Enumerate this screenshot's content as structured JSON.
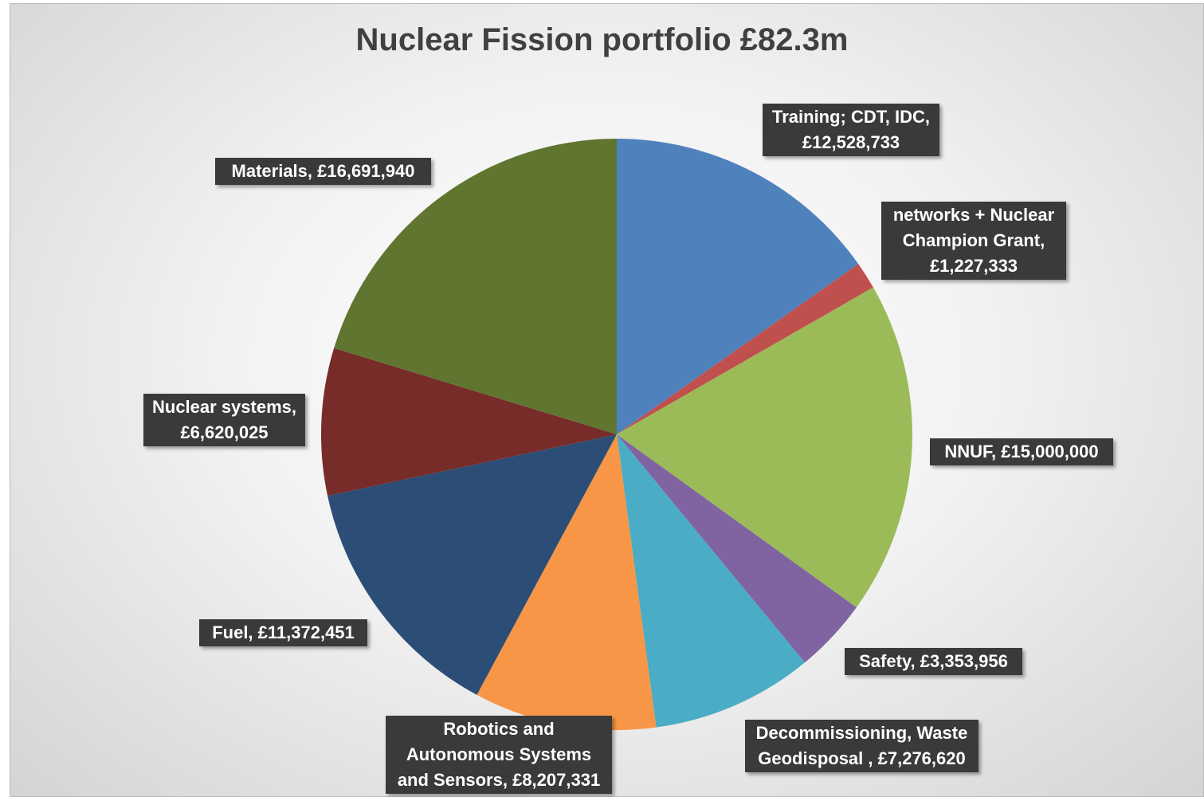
{
  "chart_data": {
    "type": "pie",
    "title": "Nuclear Fission portfolio £82.3m",
    "values": [
      12528733,
      1227333,
      15000000,
      3353956,
      7276620,
      8207331,
      11372451,
      6620025,
      16691940
    ],
    "value_labels": [
      "Training; CDT, IDC, £12,528,733",
      "networks + Nuclear Champion Grant, £1,227,333",
      "NNUF, £15,000,000",
      "Safety, £3,353,956",
      "Decommissioning, Waste Geodisposal , £7,276,620",
      "Robotics and Autonomous Systems and Sensors, £8,207,331",
      "Fuel, £11,372,451",
      "Nuclear systems, £6,620,025",
      "Materials, £16,691,940"
    ],
    "colors": [
      "#4f81bd",
      "#c0504d",
      "#9bbb59",
      "#8064a2",
      "#4bacc6",
      "#f79646",
      "#2c4d75",
      "#772c2a",
      "#5f7530"
    ]
  }
}
